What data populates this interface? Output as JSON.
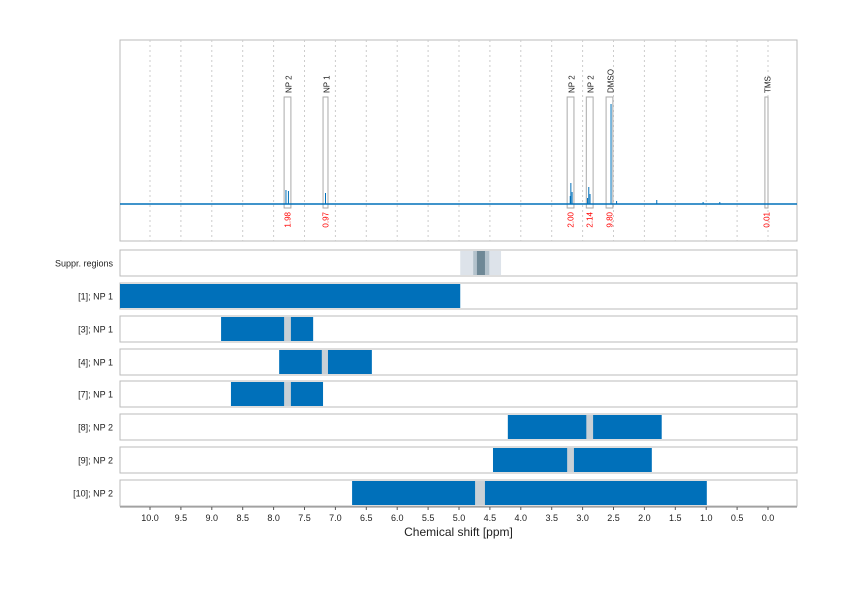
{
  "chart_data": {
    "type": "nmr-spectrum-with-range-bars",
    "xlabel": "Chemical shift [ppm]",
    "xlim": [
      10.5,
      -0.5
    ],
    "x_reversed": true,
    "xticks": [
      "10.0",
      "9.5",
      "9.0",
      "8.5",
      "8.0",
      "7.5",
      "7.0",
      "6.5",
      "6.0",
      "5.5",
      "5.0",
      "4.5",
      "4.0",
      "3.5",
      "3.0",
      "2.5",
      "2.0",
      "1.5",
      "1.0",
      "0.5",
      "0.0"
    ],
    "grid": true,
    "colors": {
      "spectrum": "#0070ba",
      "bar": "#0070ba",
      "gap": "#c8d0d6",
      "integral": "#ff0000",
      "box": "#b0b0b0"
    },
    "spectrum_peaks": [
      {
        "ppm": 7.8,
        "height": 0.14
      },
      {
        "ppm": 7.76,
        "height": 0.13
      },
      {
        "ppm": 7.16,
        "height": 0.11
      },
      {
        "ppm": 3.19,
        "height": 0.21
      },
      {
        "ppm": 3.17,
        "height": 0.12
      },
      {
        "ppm": 3.2,
        "height": 0.08
      },
      {
        "ppm": 2.9,
        "height": 0.17
      },
      {
        "ppm": 2.88,
        "height": 0.1
      },
      {
        "ppm": 2.92,
        "height": 0.06
      },
      {
        "ppm": 2.54,
        "height": 1.0
      },
      {
        "ppm": 2.45,
        "height": 0.03
      },
      {
        "ppm": 1.8,
        "height": 0.04
      },
      {
        "ppm": 1.05,
        "height": 0.02
      },
      {
        "ppm": 0.78,
        "height": 0.02
      }
    ],
    "annotations": [
      {
        "label": "NP 2",
        "from": 7.83,
        "to": 7.72,
        "integral": "1.98"
      },
      {
        "label": "NP 1",
        "from": 7.2,
        "to": 7.12,
        "integral": "0.97"
      },
      {
        "label": "NP 2",
        "from": 3.25,
        "to": 3.14,
        "integral": "2.00"
      },
      {
        "label": "NP 2",
        "from": 2.94,
        "to": 2.83,
        "integral": "2.14"
      },
      {
        "label": "DMSO",
        "from": 2.62,
        "to": 2.51,
        "integral": "9.80"
      },
      {
        "label": "TMS",
        "from": 0.05,
        "to": 0.0,
        "integral": "0.01"
      }
    ],
    "suppressed_regions": {
      "label": "Suppr. regions",
      "layers": [
        {
          "from": 4.98,
          "to": 4.32,
          "color": "#dde3ea"
        },
        {
          "from": 4.77,
          "to": 4.51,
          "color": "#b3c2cc"
        },
        {
          "from": 4.71,
          "to": 4.58,
          "color": "#6e8896"
        }
      ]
    },
    "rows": [
      {
        "label": "[1]; NP 1",
        "from": 10.5,
        "to": 4.98,
        "gaps": []
      },
      {
        "label": "[3]; NP 1",
        "from": 8.85,
        "to": 7.36,
        "gaps": [
          [
            7.83,
            7.72
          ]
        ]
      },
      {
        "label": "[4]; NP 1",
        "from": 7.91,
        "to": 6.41,
        "gaps": [
          [
            7.22,
            7.12
          ]
        ]
      },
      {
        "label": "[7]; NP 1",
        "from": 8.69,
        "to": 7.2,
        "gaps": [
          [
            7.83,
            7.72
          ]
        ]
      },
      {
        "label": "[8]; NP 2",
        "from": 4.21,
        "to": 1.72,
        "gaps": [
          [
            2.94,
            2.83
          ]
        ]
      },
      {
        "label": "[9]; NP 2",
        "from": 4.45,
        "to": 1.88,
        "gaps": [
          [
            3.25,
            3.14
          ]
        ]
      },
      {
        "label": "[10]; NP 2",
        "from": 6.73,
        "to": 0.99,
        "gaps": [
          [
            4.74,
            4.58
          ]
        ]
      }
    ]
  }
}
